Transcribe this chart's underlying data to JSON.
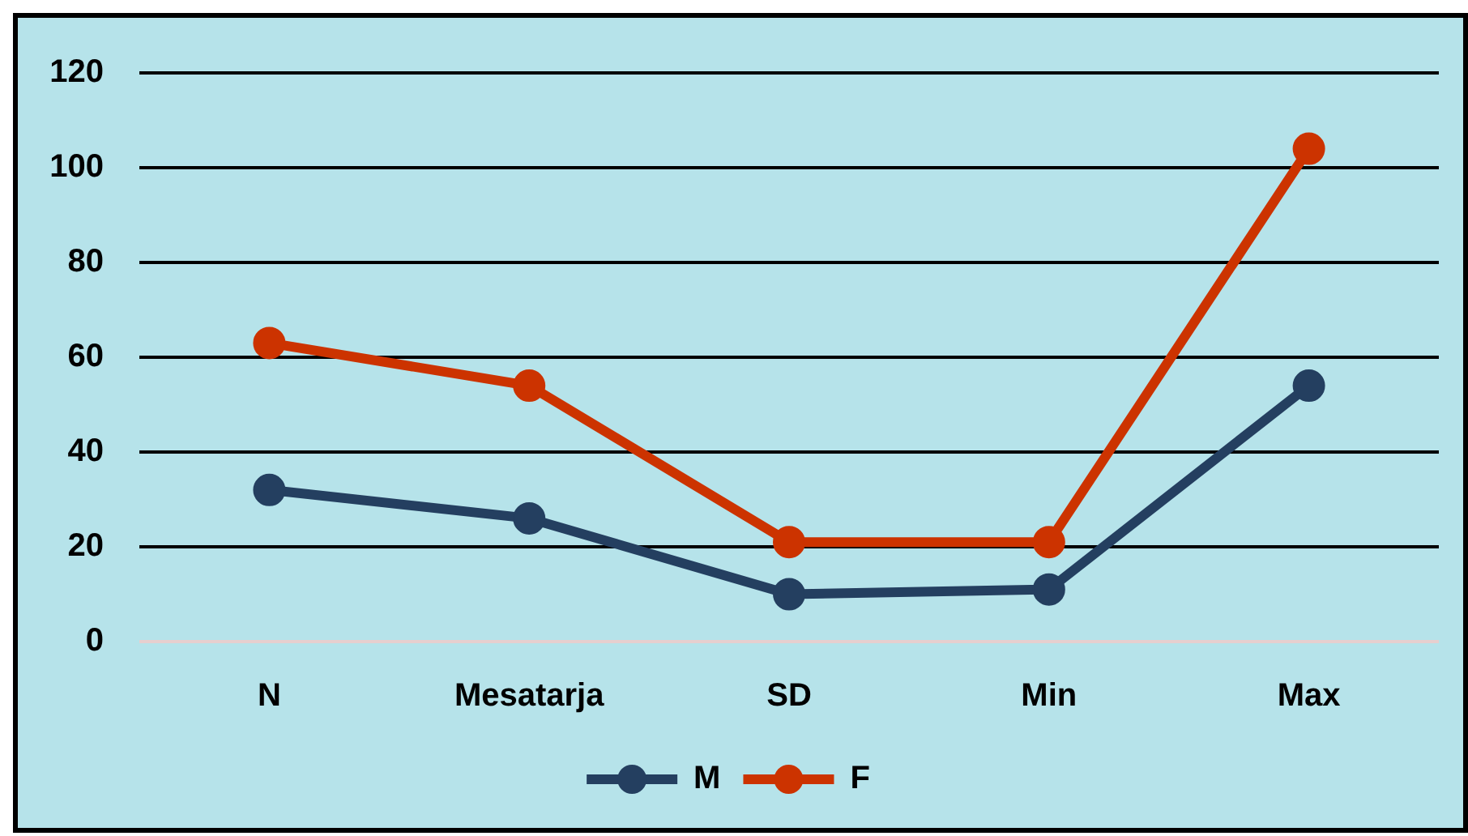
{
  "chart_data": {
    "type": "line",
    "categories": [
      "N",
      "Mesatarja",
      "SD",
      "Min",
      "Max"
    ],
    "series": [
      {
        "name": "M",
        "color": "#243f60",
        "values": [
          32,
          26,
          10,
          11,
          54
        ]
      },
      {
        "name": "F",
        "color": "#cc3300",
        "values": [
          63,
          54,
          21,
          21,
          104
        ]
      }
    ],
    "ylim": [
      0,
      120
    ],
    "yticks": [
      0,
      20,
      40,
      60,
      80,
      100,
      120
    ],
    "grid": "y",
    "legend": "bottom",
    "marker": "circle",
    "line_style": "solid"
  }
}
